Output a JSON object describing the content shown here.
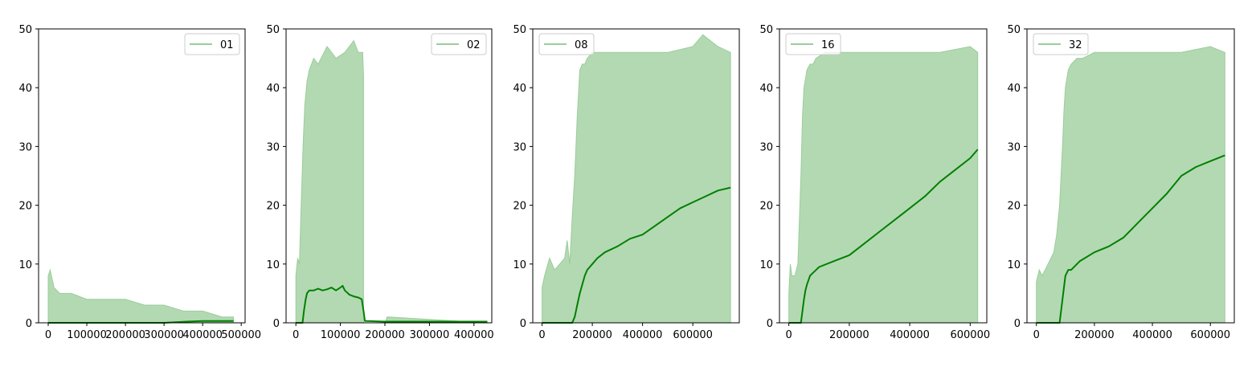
{
  "colors": {
    "raw_fill": "#b3d9b3",
    "raw_line": "#9acd9a",
    "smooth_line": "#008000",
    "axis": "#000000",
    "legend_border": "#cccccc"
  },
  "chart_data": [
    {
      "type": "area",
      "legend": "01",
      "legend_loc": "upper right",
      "xlim": [
        -25000,
        510000
      ],
      "ylim": [
        0,
        50
      ],
      "xticks": [
        0,
        100000,
        200000,
        300000,
        400000,
        500000
      ],
      "xtick_labels": [
        "0",
        "100000",
        "200000",
        "300000",
        "400000",
        "500000"
      ],
      "yticks": [
        0,
        10,
        20,
        30,
        40,
        50
      ],
      "ytick_labels": [
        "0",
        "10",
        "20",
        "30",
        "40",
        "50"
      ],
      "series": [
        {
          "role": "raw",
          "x": [
            0,
            5000,
            15000,
            30000,
            60000,
            100000,
            150000,
            200000,
            250000,
            300000,
            350000,
            400000,
            450000,
            480000,
            480000
          ],
          "y": [
            8,
            9,
            6,
            5,
            5,
            4,
            4,
            4,
            3,
            3,
            2,
            2,
            1,
            1,
            0
          ]
        },
        {
          "role": "smoothed",
          "x": [
            0,
            300000,
            330000,
            360000,
            400000,
            440000,
            480000
          ],
          "y": [
            0,
            0,
            0.1,
            0.2,
            0.3,
            0.3,
            0.3
          ]
        }
      ]
    },
    {
      "type": "area",
      "legend": "02",
      "legend_loc": "upper right",
      "xlim": [
        -22000,
        440000
      ],
      "ylim": [
        0,
        50
      ],
      "xticks": [
        0,
        100000,
        200000,
        300000,
        400000
      ],
      "xtick_labels": [
        "0",
        "100000",
        "200000",
        "300000",
        "400000"
      ],
      "yticks": [
        0,
        10,
        20,
        30,
        40,
        50
      ],
      "ytick_labels": [
        "0",
        "10",
        "20",
        "30",
        "40",
        "50"
      ],
      "series": [
        {
          "role": "raw",
          "x": [
            0,
            4000,
            8000,
            12000,
            16000,
            20000,
            25000,
            30000,
            40000,
            50000,
            70000,
            90000,
            110000,
            130000,
            140000,
            150000,
            152000,
            152000,
            200000,
            205000,
            430000
          ],
          "y": [
            8,
            11,
            10,
            20,
            30,
            37,
            41,
            43,
            45,
            44,
            47,
            45,
            46,
            48,
            46,
            46,
            42,
            0,
            0,
            1,
            0
          ]
        },
        {
          "role": "smoothed",
          "x": [
            0,
            15000,
            18000,
            22000,
            25000,
            30000,
            40000,
            50000,
            60000,
            70000,
            80000,
            90000,
            100000,
            105000,
            110000,
            120000,
            130000,
            140000,
            148000,
            152000,
            155000,
            160000,
            200000,
            300000,
            400000,
            430000
          ],
          "y": [
            0,
            0,
            2,
            4,
            5,
            5.5,
            5.5,
            5.8,
            5.5,
            5.7,
            6,
            5.5,
            6,
            6.3,
            5.5,
            4.8,
            4.5,
            4.3,
            4,
            2,
            0.3,
            0.3,
            0.2,
            0.2,
            0.2,
            0.2
          ]
        }
      ]
    },
    {
      "type": "area",
      "legend": "08",
      "legend_loc": "upper left",
      "xlim": [
        -37000,
        785000
      ],
      "ylim": [
        0,
        50
      ],
      "xticks": [
        0,
        200000,
        400000,
        600000
      ],
      "xtick_labels": [
        "0",
        "200000",
        "400000",
        "600000"
      ],
      "yticks": [
        0,
        10,
        20,
        30,
        40,
        50
      ],
      "ytick_labels": [
        "0",
        "10",
        "20",
        "30",
        "40",
        "50"
      ],
      "series": [
        {
          "role": "raw",
          "x": [
            0,
            10000,
            30000,
            50000,
            70000,
            90000,
            100000,
            110000,
            120000,
            130000,
            140000,
            150000,
            160000,
            170000,
            180000,
            200000,
            250000,
            300000,
            400000,
            500000,
            600000,
            640000,
            700000,
            750000
          ],
          "y": [
            6,
            8,
            11,
            9,
            10,
            11,
            14,
            10,
            18,
            25,
            35,
            43,
            44,
            44,
            45,
            46,
            46,
            46,
            46,
            46,
            47,
            49,
            47,
            46
          ]
        },
        {
          "role": "smoothed",
          "x": [
            0,
            120000,
            130000,
            140000,
            150000,
            160000,
            170000,
            180000,
            200000,
            220000,
            250000,
            300000,
            350000,
            400000,
            450000,
            500000,
            550000,
            600000,
            650000,
            700000,
            750000
          ],
          "y": [
            0,
            0,
            1,
            3,
            5,
            6.5,
            8,
            9,
            10,
            11,
            12,
            13,
            14.3,
            15,
            16.5,
            18,
            19.5,
            20.5,
            21.5,
            22.5,
            23
          ]
        }
      ]
    },
    {
      "type": "area",
      "legend": "16",
      "legend_loc": "upper left",
      "xlim": [
        -31000,
        655000
      ],
      "ylim": [
        0,
        50
      ],
      "xticks": [
        0,
        200000,
        400000,
        600000
      ],
      "xtick_labels": [
        "0",
        "200000",
        "400000",
        "600000"
      ],
      "yticks": [
        0,
        10,
        20,
        30,
        40,
        50
      ],
      "ytick_labels": [
        "0",
        "10",
        "20",
        "30",
        "40",
        "50"
      ],
      "series": [
        {
          "role": "raw",
          "x": [
            0,
            5000,
            10000,
            20000,
            30000,
            40000,
            45000,
            50000,
            60000,
            70000,
            80000,
            90000,
            120000,
            150000,
            200000,
            300000,
            400000,
            500000,
            600000,
            625000
          ],
          "y": [
            5,
            10,
            8,
            8,
            10,
            25,
            35,
            40,
            43,
            44,
            44,
            45,
            46,
            46,
            46,
            46,
            46,
            46,
            47,
            46
          ]
        },
        {
          "role": "smoothed",
          "x": [
            0,
            40000,
            45000,
            50000,
            55000,
            60000,
            70000,
            80000,
            100000,
            150000,
            200000,
            250000,
            300000,
            350000,
            400000,
            450000,
            500000,
            550000,
            600000,
            625000
          ],
          "y": [
            0,
            0,
            2,
            4,
            5.5,
            6.5,
            8,
            8.5,
            9.5,
            10.5,
            11.5,
            13.5,
            15.5,
            17.5,
            19.5,
            21.5,
            24,
            26,
            28,
            29.5
          ]
        }
      ]
    },
    {
      "type": "area",
      "legend": "32",
      "legend_loc": "upper left",
      "xlim": [
        -32500,
        682500
      ],
      "ylim": [
        0,
        50
      ],
      "xticks": [
        0,
        200000,
        400000,
        600000
      ],
      "xtick_labels": [
        "0",
        "200000",
        "400000",
        "600000"
      ],
      "yticks": [
        0,
        10,
        20,
        30,
        40,
        50
      ],
      "ytick_labels": [
        "0",
        "10",
        "20",
        "30",
        "40",
        "50"
      ],
      "series": [
        {
          "role": "raw",
          "x": [
            0,
            10000,
            20000,
            40000,
            60000,
            70000,
            80000,
            90000,
            95000,
            100000,
            110000,
            120000,
            140000,
            160000,
            200000,
            300000,
            400000,
            500000,
            600000,
            650000
          ],
          "y": [
            7,
            9,
            8,
            10,
            12,
            15,
            20,
            30,
            36,
            40,
            43,
            44,
            45,
            45,
            46,
            46,
            46,
            46,
            47,
            46
          ]
        },
        {
          "role": "smoothed",
          "x": [
            0,
            80000,
            85000,
            90000,
            95000,
            100000,
            110000,
            120000,
            150000,
            200000,
            250000,
            300000,
            350000,
            400000,
            450000,
            500000,
            550000,
            600000,
            650000
          ],
          "y": [
            0,
            0,
            2,
            4,
            6,
            8,
            9,
            9,
            10.5,
            12,
            13,
            14.5,
            17,
            19.5,
            22,
            25,
            26.5,
            27.5,
            28.5
          ]
        }
      ]
    }
  ]
}
